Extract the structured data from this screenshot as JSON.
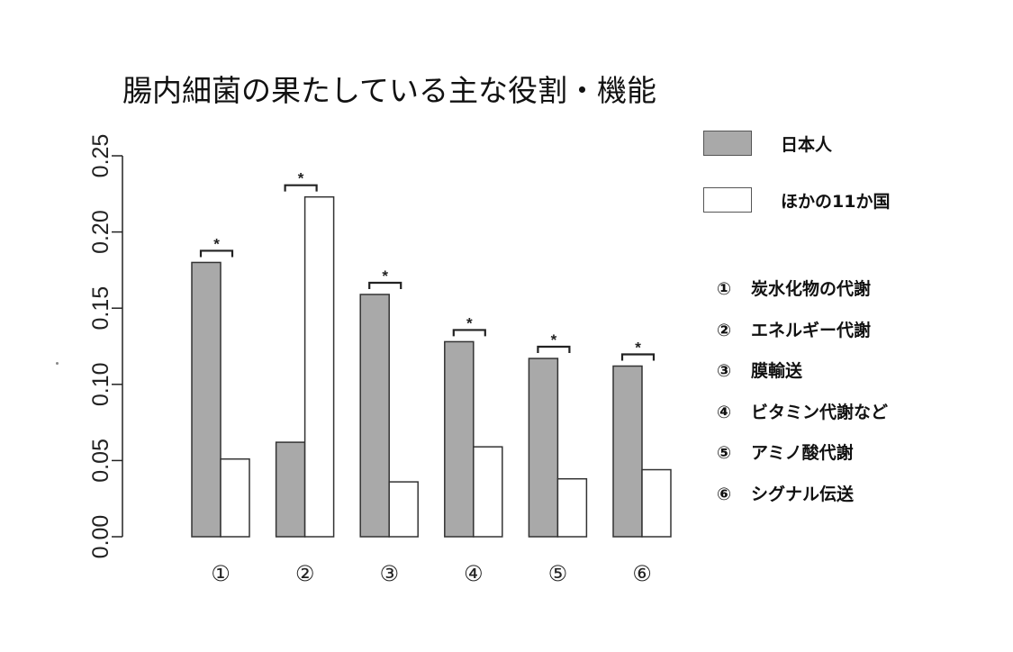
{
  "chart_data": {
    "type": "bar",
    "title": "腸内細菌の果たしている主な役割・機能",
    "categories": [
      "①",
      "②",
      "③",
      "④",
      "⑤",
      "⑥"
    ],
    "series": [
      {
        "name": "日本人",
        "color": "#a9a9a9",
        "values": [
          0.18,
          0.062,
          0.159,
          0.128,
          0.117,
          0.112
        ]
      },
      {
        "name": "ほかの11か国",
        "color": "#ffffff",
        "values": [
          0.051,
          0.223,
          0.036,
          0.059,
          0.038,
          0.044
        ]
      }
    ],
    "ylim": [
      0,
      0.25
    ],
    "yticks": [
      "0.00",
      "0.05",
      "0.10",
      "0.15",
      "0.20",
      "0.25"
    ],
    "significance_marker": "*",
    "legend_position": "top-right",
    "category_key": [
      {
        "num": "①",
        "label": "炭水化物の代謝"
      },
      {
        "num": "②",
        "label": "エネルギー代謝"
      },
      {
        "num": "③",
        "label": "膜輸送"
      },
      {
        "num": "④",
        "label": "ビタミン代謝など"
      },
      {
        "num": "⑤",
        "label": "アミノ酸代謝"
      },
      {
        "num": "⑥",
        "label": "シグナル伝送"
      }
    ]
  }
}
